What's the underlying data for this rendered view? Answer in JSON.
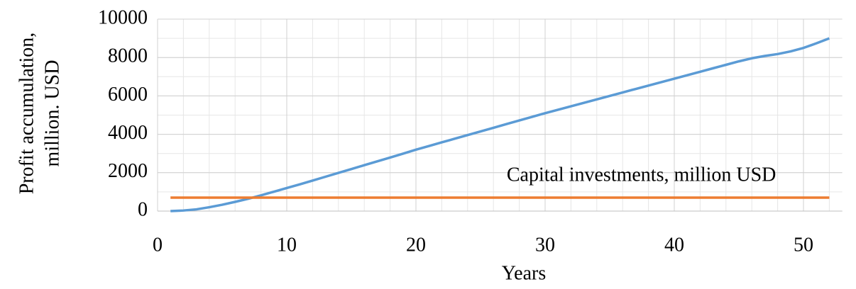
{
  "chart_data": {
    "type": "line",
    "x_label": "Years",
    "y_label": [
      "Profit accumulation,",
      "million. USD"
    ],
    "xlim": [
      0,
      53
    ],
    "ylim": [
      0,
      10000
    ],
    "xticks": [
      0,
      10,
      20,
      30,
      40,
      50
    ],
    "yticks": [
      0,
      2000,
      4000,
      6000,
      8000,
      10000
    ],
    "grid": true,
    "minor_grid": {
      "x": 2,
      "y": 1000
    },
    "series": [
      {
        "color": "#5b9bd5",
        "x": [
          1,
          2,
          3,
          4,
          5,
          6,
          7,
          8,
          9,
          10,
          11,
          12,
          13,
          14,
          15,
          16,
          17,
          18,
          19,
          20,
          21,
          22,
          23,
          24,
          25,
          26,
          27,
          28,
          29,
          30,
          31,
          32,
          33,
          34,
          35,
          36,
          37,
          38,
          39,
          40,
          41,
          42,
          43,
          44,
          45,
          46,
          47,
          48,
          49,
          50,
          51,
          52
        ],
        "values": [
          0,
          30,
          90,
          200,
          330,
          480,
          640,
          820,
          1010,
          1200,
          1390,
          1590,
          1790,
          1990,
          2190,
          2390,
          2590,
          2790,
          2990,
          3200,
          3390,
          3580,
          3770,
          3960,
          4150,
          4340,
          4530,
          4720,
          4910,
          5100,
          5280,
          5460,
          5640,
          5820,
          6000,
          6180,
          6360,
          6540,
          6720,
          6900,
          7080,
          7260,
          7440,
          7620,
          7800,
          7960,
          8080,
          8180,
          8320,
          8500,
          8740,
          9000
        ]
      },
      {
        "name": "Capital investments, million USD",
        "color": "#ed7d31",
        "x": [
          1,
          52
        ],
        "values": [
          700,
          700
        ]
      }
    ]
  }
}
